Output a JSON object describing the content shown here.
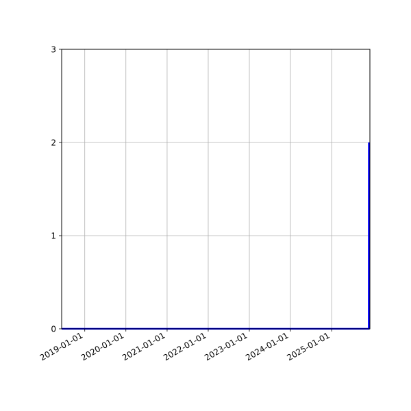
{
  "chart_data": {
    "type": "line",
    "title": "",
    "xlabel": "",
    "ylabel": "",
    "x_type": "date",
    "xlim": [
      "2018-06-10",
      "2025-12-06"
    ],
    "ylim": [
      0,
      3
    ],
    "grid": true,
    "x_ticks": [
      "2019-01-01",
      "2020-01-01",
      "2021-01-01",
      "2022-01-01",
      "2023-01-01",
      "2024-01-01",
      "2025-01-01"
    ],
    "y_ticks": [
      "0",
      "1",
      "2",
      "3"
    ],
    "series": [
      {
        "color": "#0000ff",
        "x": [
          "2018-06-10",
          "2025-11-26",
          "2025-11-27"
        ],
        "y": [
          0,
          0,
          2
        ]
      }
    ]
  }
}
